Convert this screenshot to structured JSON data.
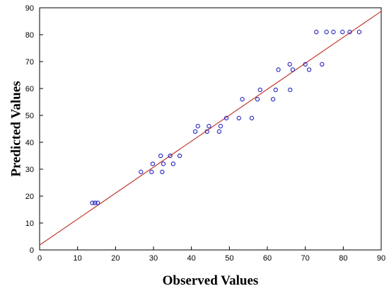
{
  "chart_data": {
    "type": "scatter",
    "xlabel": "Observed Values",
    "ylabel": "Predicted Values",
    "xlim": [
      0,
      90
    ],
    "ylim": [
      0,
      90
    ],
    "x_ticks": [
      0,
      10,
      20,
      30,
      40,
      50,
      60,
      70,
      80,
      90
    ],
    "y_ticks": [
      0,
      10,
      20,
      30,
      40,
      50,
      60,
      70,
      80,
      90
    ],
    "grid": false,
    "legend": "none",
    "series": [
      {
        "marker": "open-circle",
        "color": "#1f1fbf",
        "points": [
          [
            13.9,
            17.5
          ],
          [
            14.6,
            17.5
          ],
          [
            15.3,
            17.5
          ],
          [
            26.7,
            29.0
          ],
          [
            29.5,
            29.0
          ],
          [
            29.8,
            32.0
          ],
          [
            31.9,
            35.0
          ],
          [
            32.3,
            29.0
          ],
          [
            32.6,
            32.0
          ],
          [
            34.4,
            35.0
          ],
          [
            35.2,
            32.0
          ],
          [
            36.9,
            35.0
          ],
          [
            41.0,
            44.0
          ],
          [
            41.7,
            46.0
          ],
          [
            44.1,
            44.0
          ],
          [
            44.6,
            46.0
          ],
          [
            47.3,
            44.0
          ],
          [
            47.7,
            46.0
          ],
          [
            49.2,
            49.0
          ],
          [
            52.5,
            49.0
          ],
          [
            53.4,
            56.0
          ],
          [
            55.9,
            49.0
          ],
          [
            57.4,
            56.0
          ],
          [
            58.1,
            59.5
          ],
          [
            61.5,
            56.0
          ],
          [
            62.2,
            59.5
          ],
          [
            62.9,
            67.0
          ],
          [
            65.9,
            69.0
          ],
          [
            66.0,
            59.5
          ],
          [
            66.7,
            67.0
          ],
          [
            70.0,
            69.0
          ],
          [
            71.0,
            67.0
          ],
          [
            72.9,
            81.0
          ],
          [
            74.4,
            69.0
          ],
          [
            75.6,
            81.0
          ],
          [
            77.4,
            81.0
          ],
          [
            79.8,
            81.0
          ],
          [
            81.7,
            81.0
          ],
          [
            84.2,
            81.0
          ]
        ]
      }
    ],
    "fit_line": {
      "type": "line",
      "color": "#c0392b",
      "points": [
        [
          0,
          1.8
        ],
        [
          90,
          88.7
        ]
      ]
    }
  }
}
